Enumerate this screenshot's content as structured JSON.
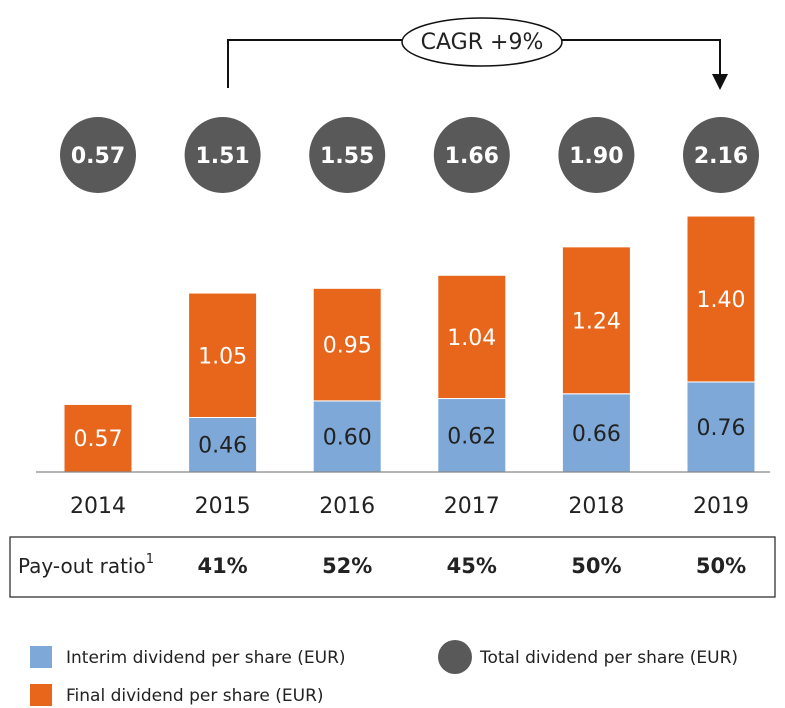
{
  "chart_data": {
    "type": "bar",
    "stacked": true,
    "categories": [
      "2014",
      "2015",
      "2016",
      "2017",
      "2018",
      "2019"
    ],
    "series": [
      {
        "name": "Interim dividend per share (EUR)",
        "color": "#7ea8d8",
        "values": [
          null,
          0.46,
          0.6,
          0.62,
          0.66,
          0.76
        ],
        "value_labels": [
          null,
          "0.46",
          "0.60",
          "0.62",
          "0.66",
          "0.76"
        ]
      },
      {
        "name": "Final dividend per share (EUR)",
        "color": "#e8661c",
        "values": [
          0.57,
          1.05,
          0.95,
          1.04,
          1.24,
          1.4
        ],
        "value_labels": [
          "0.57",
          "1.05",
          "0.95",
          "1.04",
          "1.24",
          "1.40"
        ]
      }
    ],
    "totals": {
      "name": "Total dividend per share (EUR)",
      "color": "#595959",
      "values": [
        0.57,
        1.51,
        1.55,
        1.66,
        1.9,
        2.16
      ],
      "value_labels": [
        "0.57",
        "1.51",
        "1.55",
        "1.66",
        "1.90",
        "2.16"
      ]
    },
    "annotation": "CAGR +9%",
    "payout": {
      "label": "Pay-out ratio",
      "footnote": "1",
      "values": [
        null,
        41,
        52,
        45,
        50,
        50
      ],
      "value_labels": [
        null,
        "41%",
        "52%",
        "45%",
        "50%",
        "50%"
      ]
    }
  }
}
